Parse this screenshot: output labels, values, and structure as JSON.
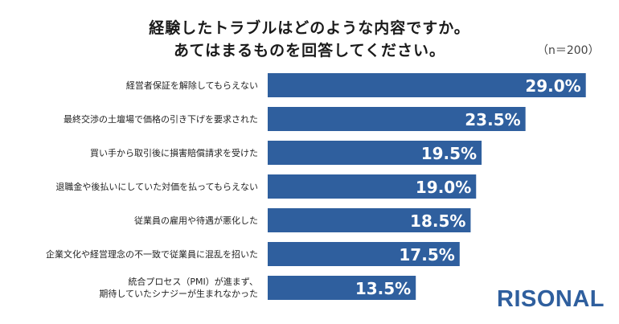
{
  "title_line1": "経験したトラブルはどのような内容ですか。",
  "title_line2": "あてはまるものを回答してください。",
  "note": "（n＝200）",
  "logo": "RISONAL",
  "chart_data": {
    "type": "bar",
    "orientation": "horizontal",
    "title": "経験したトラブルはどのような内容ですか。あてはまるものを回答してください。",
    "categories": [
      "経営者保証を解除してもらえない",
      "最終交渉の土壇場で価格の引き下げを要求された",
      "買い手から取引後に損害賠償請求を受けた",
      "退職金や後払いにしていた対価を払ってもらえない",
      "従業員の雇用や待遇が悪化した",
      "企業文化や経営理念の不一致で従業員に混乱を招いた",
      "統合プロセス（PMI）が進まず、期待していたシナジーが生まれなかった"
    ],
    "values": [
      29.0,
      23.5,
      19.5,
      19.0,
      18.5,
      17.5,
      13.5
    ],
    "value_labels": [
      "29.0%",
      "23.5%",
      "19.5%",
      "19.0%",
      "18.5%",
      "17.5%",
      "13.5%"
    ],
    "xlim": [
      0,
      30
    ],
    "bar_color": "#2f5f9e",
    "label_color": "#ffffff",
    "grid": false,
    "legend": "none"
  }
}
